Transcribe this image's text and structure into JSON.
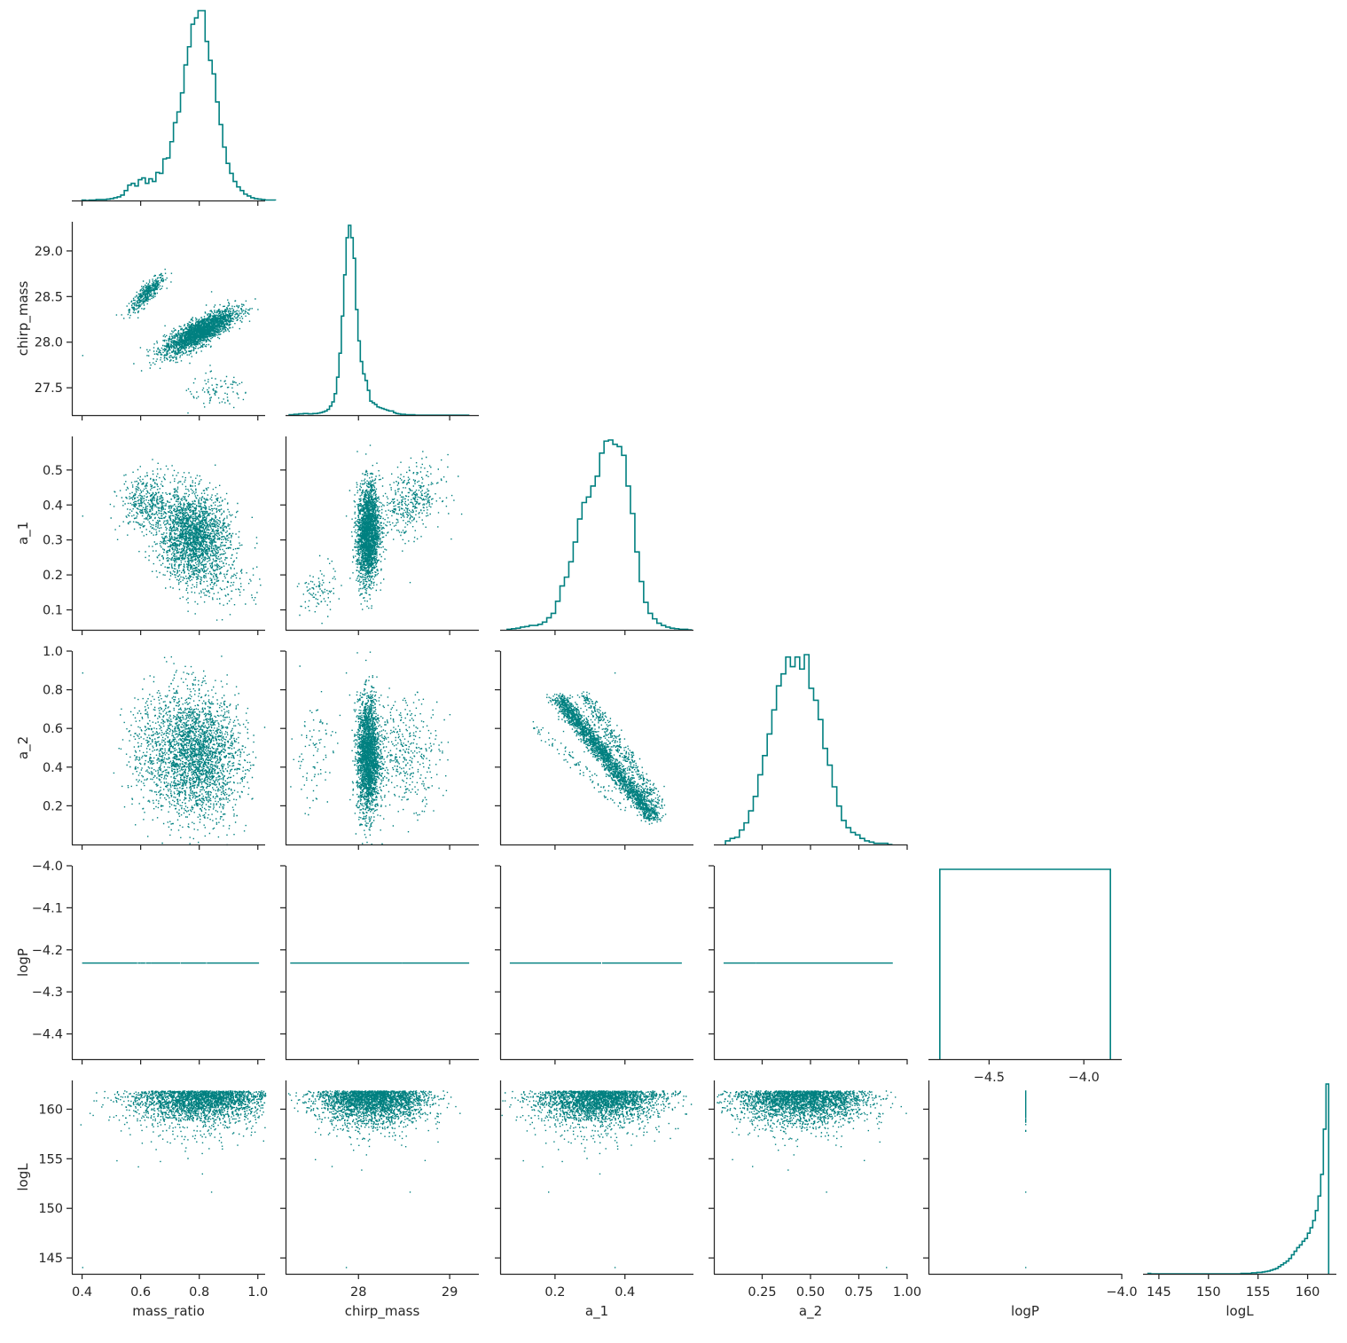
{
  "chart_data": {
    "type": "pairplot-corner",
    "color": "#008080",
    "variables": [
      {
        "name": "mass_ratio",
        "range": [
          0.365,
          1.025
        ],
        "ticks": [
          0.4,
          0.6,
          0.8,
          1.0
        ],
        "tick_labels": [
          "0.4",
          "0.6",
          "0.8",
          "1.0"
        ]
      },
      {
        "name": "chirp_mass",
        "range": [
          27.2,
          29.32
        ],
        "ticks": [
          27.5,
          28.0,
          28.5,
          29.0
        ],
        "tick_labels": [
          "27.5",
          "28.0",
          "28.5",
          "29.0"
        ],
        "diag_ticks": [
          28,
          29
        ],
        "diag_tick_labels": [
          "28",
          "29"
        ]
      },
      {
        "name": "a_1",
        "range": [
          0.043,
          0.596
        ],
        "ticks": [
          0.1,
          0.2,
          0.3,
          0.4,
          0.5
        ],
        "tick_labels": [
          "0.1",
          "0.2",
          "0.3",
          "0.4",
          "0.5"
        ],
        "diag_ticks": [
          0.2,
          0.4
        ],
        "diag_tick_labels": [
          "0.2",
          "0.4"
        ]
      },
      {
        "name": "a_2",
        "range": [
          0.0,
          1.0
        ],
        "ticks": [
          0.2,
          0.4,
          0.6,
          0.8,
          1.0
        ],
        "tick_labels": [
          "0.2",
          "0.4",
          "0.6",
          "0.8",
          "1.0"
        ],
        "diag_ticks": [
          0.25,
          0.5,
          0.75,
          1.0
        ],
        "diag_tick_labels": [
          "0.25",
          "0.50",
          "0.75",
          "1.00"
        ]
      },
      {
        "name": "logP",
        "range": [
          -4.46,
          -4.0
        ],
        "ticks": [
          -4.4,
          -4.3,
          -4.2,
          -4.1,
          -4.0
        ],
        "tick_labels": [
          "−4.4",
          "−4.3",
          "−4.2",
          "−4.1",
          "−4.0"
        ],
        "diag_ticks": [
          -4.5,
          -4.0
        ],
        "diag_tick_labels": [
          "−4.5",
          "−4.0"
        ]
      },
      {
        "name": "logL",
        "range": [
          143.4,
          162.9
        ],
        "ticks": [
          145,
          150,
          155,
          160
        ],
        "tick_labels": [
          "145",
          "150",
          "155",
          "160"
        ]
      }
    ],
    "diag_x_ranges": [
      [
        0.365,
        1.025
      ],
      [
        27.2,
        29.32
      ],
      [
        0.043,
        0.596
      ],
      [
        0.0,
        1.0
      ],
      [
        -4.82,
        -3.8
      ],
      [
        143.4,
        162.9
      ]
    ],
    "marginal_histograms": [
      {
        "variable": "mass_ratio",
        "type": "step",
        "edges_start": 0.4,
        "bin_width": 0.012,
        "counts": [
          1,
          0,
          1,
          1,
          2,
          2,
          2,
          3,
          4,
          6,
          8,
          12,
          22,
          34,
          38,
          32,
          46,
          50,
          38,
          48,
          42,
          62,
          60,
          92,
          94,
          130,
          172,
          196,
          238,
          300,
          340,
          390,
          404,
          420,
          420,
          352,
          310,
          280,
          218,
          168,
          118,
          82,
          60,
          42,
          30,
          22,
          14,
          10,
          6,
          4,
          3,
          2,
          1,
          1,
          1
        ]
      },
      {
        "variable": "chirp_mass",
        "type": "step",
        "edges_start": 27.24,
        "bin_width": 0.026,
        "counts": [
          1,
          1,
          2,
          2,
          3,
          3,
          4,
          4,
          3,
          3,
          4,
          4,
          5,
          6,
          8,
          10,
          14,
          22,
          32,
          52,
          92,
          150,
          240,
          340,
          430,
          460,
          430,
          380,
          256,
          180,
          130,
          100,
          84,
          60,
          34,
          30,
          26,
          20,
          18,
          16,
          14,
          12,
          10,
          10,
          6,
          4,
          3,
          2,
          2,
          1,
          1,
          1,
          1,
          0,
          0,
          0,
          0,
          0,
          0,
          0,
          0,
          0,
          0,
          0,
          0,
          0,
          0,
          0,
          0,
          0,
          0,
          0,
          0,
          0,
          0,
          0
        ]
      },
      {
        "variable": "a_1",
        "type": "step",
        "edges_start": 0.063,
        "bin_width": 0.0126,
        "counts": [
          1,
          2,
          3,
          5,
          6,
          8,
          8,
          10,
          14,
          22,
          30,
          52,
          80,
          96,
          124,
          160,
          202,
          232,
          242,
          262,
          280,
          322,
          344,
          346,
          338,
          334,
          318,
          262,
          212,
          142,
          88,
          50,
          30,
          20,
          12,
          8,
          5,
          3,
          2,
          1,
          1,
          0
        ]
      },
      {
        "variable": "a_2",
        "type": "step",
        "edges_start": 0.06,
        "bin_width": 0.024,
        "counts": [
          3,
          5,
          6,
          12,
          18,
          28,
          40,
          58,
          74,
          92,
          112,
          132,
          142,
          156,
          148,
          156,
          146,
          158,
          130,
          120,
          104,
          80,
          66,
          48,
          32,
          20,
          14,
          10,
          8,
          5,
          3,
          2,
          1,
          1,
          1,
          0
        ]
      },
      {
        "variable": "logP",
        "type": "step",
        "edges": [
          -4.76,
          -3.86
        ],
        "counts": [
          1
        ]
      },
      {
        "variable": "logL",
        "type": "step",
        "edges_start": 143.9,
        "bin_width": 0.268,
        "counts": [
          1,
          0,
          0,
          0,
          0,
          0,
          0,
          0,
          0,
          0,
          0,
          0,
          0,
          0,
          0,
          0,
          0,
          0,
          0,
          0,
          0,
          0,
          0,
          0,
          0,
          0,
          0,
          0,
          0,
          0,
          0,
          0,
          0,
          0,
          0,
          1,
          1,
          1,
          1,
          2,
          2,
          3,
          3,
          4,
          5,
          6,
          8,
          10,
          12,
          16,
          20,
          24,
          28,
          34,
          42,
          50,
          58,
          64,
          72,
          78,
          90,
          102,
          118,
          140,
          172,
          220,
          320,
          420
        ]
      }
    ],
    "scatter_clusters": {
      "mass_ratio__chirp_mass": [
        {
          "center": [
            0.62,
            28.54
          ],
          "spread": [
            0.03,
            0.1
          ],
          "corr": 0.85,
          "n": 420
        },
        {
          "center": [
            0.8,
            28.12
          ],
          "spread": [
            0.06,
            0.12
          ],
          "corr": 0.8,
          "n": 2400
        },
        {
          "center": [
            0.86,
            27.45
          ],
          "spread": [
            0.06,
            0.1
          ],
          "corr": 0.3,
          "n": 90
        }
      ],
      "mass_ratio__a_1": [
        {
          "center": [
            0.62,
            0.41
          ],
          "spread": [
            0.045,
            0.04
          ],
          "corr": 0,
          "n": 420
        },
        {
          "center": [
            0.78,
            0.31
          ],
          "spread": [
            0.06,
            0.065
          ],
          "corr": -0.1,
          "n": 2400
        },
        {
          "center": [
            0.9,
            0.17
          ],
          "spread": [
            0.06,
            0.04
          ],
          "corr": 0,
          "n": 90
        }
      ],
      "mass_ratio__a_2": [
        {
          "center": [
            0.66,
            0.48
          ],
          "spread": [
            0.06,
            0.16
          ],
          "corr": 0,
          "n": 420
        },
        {
          "center": [
            0.79,
            0.47
          ],
          "spread": [
            0.07,
            0.16
          ],
          "corr": -0.1,
          "n": 2400
        },
        {
          "center": [
            0.88,
            0.45
          ],
          "spread": [
            0.06,
            0.16
          ],
          "corr": 0,
          "n": 90
        }
      ],
      "chirp_mass__a_1": [
        {
          "center": [
            28.1,
            0.32
          ],
          "spread": [
            0.06,
            0.07
          ],
          "corr": 0.1,
          "n": 2400
        },
        {
          "center": [
            28.55,
            0.41
          ],
          "spread": [
            0.18,
            0.05
          ],
          "corr": 0.3,
          "n": 420
        },
        {
          "center": [
            27.55,
            0.15
          ],
          "spread": [
            0.1,
            0.04
          ],
          "corr": 0.3,
          "n": 90
        }
      ],
      "chirp_mass__a_2": [
        {
          "center": [
            28.1,
            0.46
          ],
          "spread": [
            0.06,
            0.15
          ],
          "corr": 0,
          "n": 2400
        },
        {
          "center": [
            28.5,
            0.48
          ],
          "spread": [
            0.2,
            0.14
          ],
          "corr": 0,
          "n": 420
        },
        {
          "center": [
            27.5,
            0.47
          ],
          "spread": [
            0.12,
            0.15
          ],
          "corr": 0,
          "n": 90
        }
      ],
      "a_1__a_2": [
        {
          "line": [
            [
              0.21,
              0.76
            ],
            [
              0.48,
              0.14
            ]
          ],
          "jitter": 0.014,
          "n": 2400
        },
        {
          "line": [
            [
              0.28,
              0.78
            ],
            [
              0.5,
              0.2
            ]
          ],
          "jitter": 0.012,
          "n": 420
        },
        {
          "line": [
            [
              0.13,
              0.63
            ],
            [
              0.4,
              0.18
            ]
          ],
          "jitter": 0.012,
          "n": 90
        }
      ],
      "logP_value": -4.23,
      "logL_main": {
        "max": 161.9,
        "spread": 1.0
      },
      "outliers": [
        {
          "mass_ratio": 0.4,
          "chirp_mass": 27.86,
          "a_1": 0.37,
          "a_2": 0.89,
          "logL": 144.1
        },
        {
          "mass_ratio": 0.84,
          "chirp_mass": 28.56,
          "a_1": 0.18,
          "a_2": 0.58,
          "logL": 151.7
        }
      ]
    }
  }
}
